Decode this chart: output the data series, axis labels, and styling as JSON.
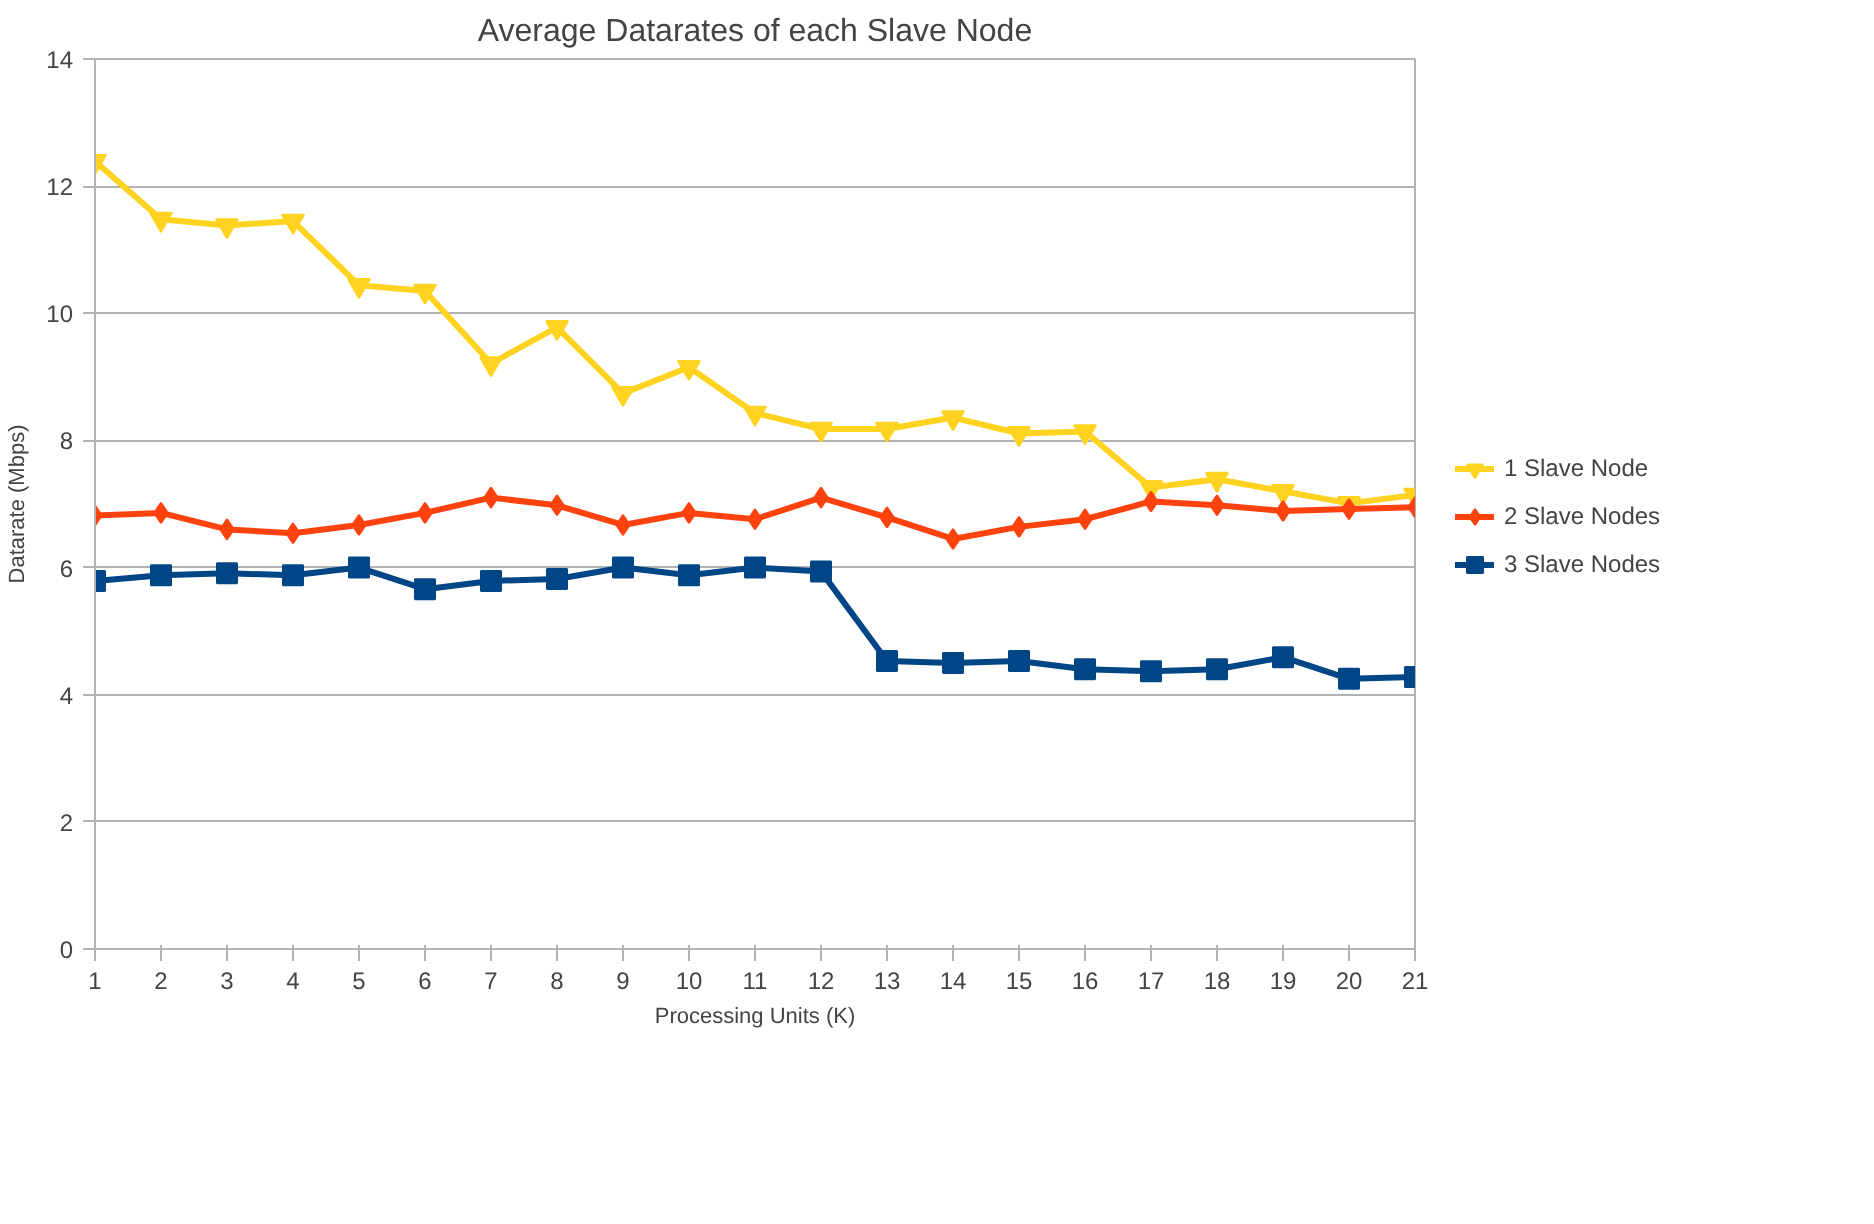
{
  "chart_data": {
    "type": "line",
    "title": "Average Datarates of each Slave Node",
    "xlabel": "Processing Units (K)",
    "ylabel": "Datarate (Mbps)",
    "x": [
      1,
      2,
      3,
      4,
      5,
      6,
      7,
      8,
      9,
      10,
      11,
      12,
      13,
      14,
      15,
      16,
      17,
      18,
      19,
      20,
      21
    ],
    "series": [
      {
        "name": "1 Slave Node",
        "color": "#ffd320",
        "marker": "triangle",
        "values": [
          12.39,
          11.48,
          11.38,
          11.45,
          10.44,
          10.35,
          9.21,
          9.78,
          8.74,
          9.15,
          8.43,
          8.18,
          8.18,
          8.36,
          8.11,
          8.14,
          7.26,
          7.39,
          7.2,
          7.01,
          7.14
        ]
      },
      {
        "name": "2 Slave Nodes",
        "color": "#ff420e",
        "marker": "diamond",
        "values": [
          6.82,
          6.86,
          6.6,
          6.54,
          6.67,
          6.86,
          7.1,
          6.98,
          6.67,
          6.86,
          6.76,
          7.1,
          6.79,
          6.45,
          6.64,
          6.76,
          7.04,
          6.98,
          6.89,
          6.92,
          6.95
        ]
      },
      {
        "name": "3 Slave Nodes",
        "color": "#004586",
        "marker": "square",
        "values": [
          5.79,
          5.88,
          5.91,
          5.88,
          6.0,
          5.66,
          5.79,
          5.82,
          6.0,
          5.88,
          6.0,
          5.94,
          4.53,
          4.5,
          4.53,
          4.4,
          4.37,
          4.4,
          4.59,
          4.25,
          4.28
        ]
      }
    ],
    "xlim": [
      1,
      21
    ],
    "xticks": [
      1,
      2,
      3,
      4,
      5,
      6,
      7,
      8,
      9,
      10,
      11,
      12,
      13,
      14,
      15,
      16,
      17,
      18,
      19,
      20,
      21
    ],
    "ylim": [
      0,
      14
    ],
    "yticks": [
      0,
      2,
      4,
      6,
      8,
      10,
      12,
      14
    ],
    "grid": "y",
    "legend": "right",
    "line_style": "solid"
  }
}
